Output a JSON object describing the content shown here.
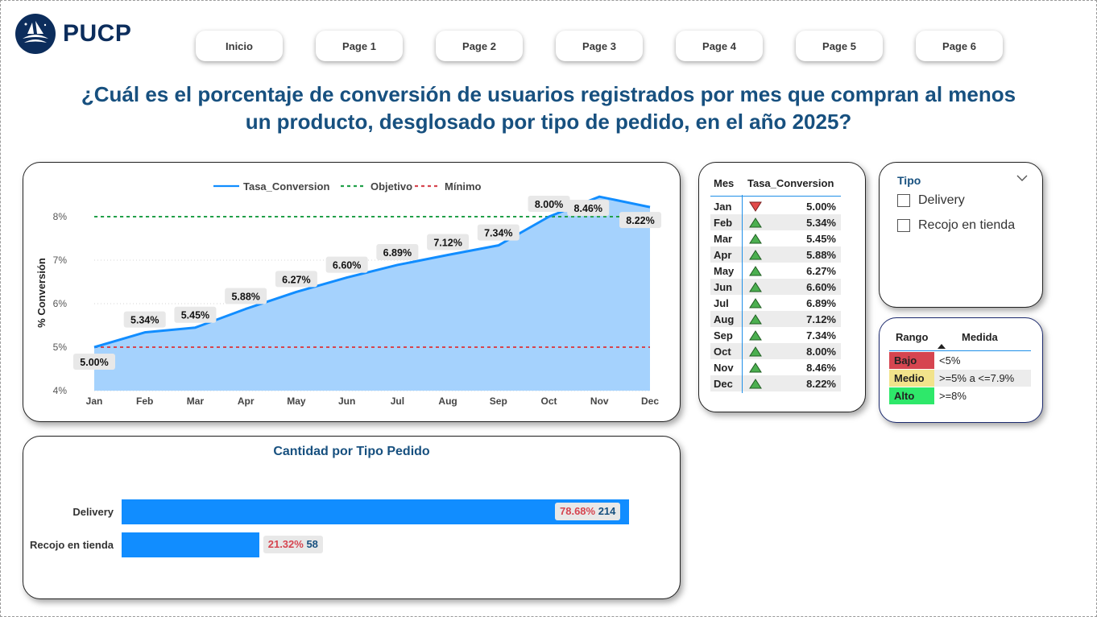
{
  "brand": {
    "name": "PUCP"
  },
  "nav": [
    "Inicio",
    "Page 1",
    "Page 2",
    "Page 3",
    "Page 4",
    "Page 5",
    "Page 6"
  ],
  "title_line1": "¿Cuál es el porcentaje de conversión de usuarios registrados por mes que compran al menos",
  "title_line2": "un producto, desglosado por tipo de pedido, en el año 2025?",
  "colors": {
    "accent": "#118dff",
    "area": "#a5d2fd",
    "objetivo": "#21a049",
    "minimo": "#d64550",
    "title": "#17507f"
  },
  "chart_data": [
    {
      "type": "area",
      "title": "",
      "ylabel": "% Conversión",
      "xlabel": "",
      "ylim": [
        4,
        8.5
      ],
      "yticks": [
        "4%",
        "5%",
        "6%",
        "7%",
        "8%"
      ],
      "categories": [
        "Jan",
        "Feb",
        "Mar",
        "Apr",
        "May",
        "Jun",
        "Jul",
        "Aug",
        "Sep",
        "Oct",
        "Nov",
        "Dec"
      ],
      "legend": [
        "Tasa_Conversion",
        "Objetivo",
        "Mínimo"
      ],
      "legend_position": "top-center",
      "series": [
        {
          "name": "Tasa_Conversion",
          "values": [
            5.0,
            5.34,
            5.45,
            5.88,
            6.27,
            6.6,
            6.89,
            7.12,
            7.34,
            8.0,
            8.46,
            8.22
          ]
        },
        {
          "name": "Objetivo",
          "values": [
            8,
            8,
            8,
            8,
            8,
            8,
            8,
            8,
            8,
            8,
            8,
            8
          ]
        },
        {
          "name": "Mínimo",
          "values": [
            5,
            5,
            5,
            5,
            5,
            5,
            5,
            5,
            5,
            5,
            5,
            5
          ]
        }
      ],
      "data_labels": [
        "5.00%",
        "5.34%",
        "5.45%",
        "5.88%",
        "6.27%",
        "6.60%",
        "6.89%",
        "7.12%",
        "7.34%",
        "8.00%",
        "8.46%",
        "8.22%"
      ],
      "grid": true
    },
    {
      "type": "bar",
      "orientation": "horizontal",
      "title": "Cantidad por Tipo Pedido",
      "categories": [
        "Delivery",
        "Recojo en tienda"
      ],
      "values": [
        214,
        58
      ],
      "percent_labels": [
        "78.68%",
        "21.32%"
      ]
    }
  ],
  "table": {
    "headers": [
      "Mes",
      "Tasa_Conversion"
    ],
    "rows": [
      {
        "mes": "Jan",
        "trend": "down",
        "value": "5.00%"
      },
      {
        "mes": "Feb",
        "trend": "up",
        "value": "5.34%"
      },
      {
        "mes": "Mar",
        "trend": "up",
        "value": "5.45%"
      },
      {
        "mes": "Apr",
        "trend": "up",
        "value": "5.88%"
      },
      {
        "mes": "May",
        "trend": "up",
        "value": "6.27%"
      },
      {
        "mes": "Jun",
        "trend": "up",
        "value": "6.60%"
      },
      {
        "mes": "Jul",
        "trend": "up",
        "value": "6.89%"
      },
      {
        "mes": "Aug",
        "trend": "up",
        "value": "7.12%"
      },
      {
        "mes": "Sep",
        "trend": "up",
        "value": "7.34%"
      },
      {
        "mes": "Oct",
        "trend": "up",
        "value": "8.00%"
      },
      {
        "mes": "Nov",
        "trend": "up",
        "value": "8.46%"
      },
      {
        "mes": "Dec",
        "trend": "up",
        "value": "8.22%"
      }
    ]
  },
  "slicer": {
    "title": "Tipo",
    "options": [
      "Delivery",
      "Recojo en tienda"
    ]
  },
  "ranges": {
    "headers": [
      "Rango",
      "Medida"
    ],
    "rows": [
      {
        "label": "Bajo",
        "value": "<5%",
        "color": "#d64550"
      },
      {
        "label": "Medio",
        "value": ">=5% a <=7.9%",
        "color": "#f2e38b"
      },
      {
        "label": "Alto",
        "value": ">=8%",
        "color": "#2ee86a"
      }
    ]
  }
}
